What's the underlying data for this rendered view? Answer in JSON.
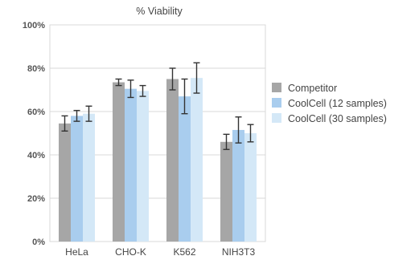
{
  "chart_data": {
    "type": "bar",
    "title": "% Viability",
    "xlabel": "",
    "ylabel": "",
    "categories": [
      "HeLa",
      "CHO-K",
      "K562",
      "NIH3T3"
    ],
    "ylim": [
      0,
      100
    ],
    "yticks": [
      0,
      20,
      40,
      60,
      80,
      100
    ],
    "ytick_labels": [
      "0%",
      "20%",
      "40%",
      "60%",
      "80%",
      "100%"
    ],
    "grid": true,
    "legend_position": "right",
    "series": [
      {
        "name": "Competitor",
        "color": "#a6a6a6",
        "values": [
          54.5,
          73.5,
          75,
          46
        ],
        "error": [
          3.5,
          1.5,
          5,
          3.5
        ]
      },
      {
        "name": "CoolCell (12 samples)",
        "color": "#a9cdee",
        "values": [
          58,
          70.5,
          67,
          51.5
        ],
        "error": [
          2.5,
          4,
          8,
          6
        ]
      },
      {
        "name": "CoolCell (30 samples)",
        "color": "#d4e8f7",
        "values": [
          59,
          69.5,
          75.5,
          50
        ],
        "error": [
          3.5,
          2.5,
          7,
          4
        ]
      }
    ]
  }
}
